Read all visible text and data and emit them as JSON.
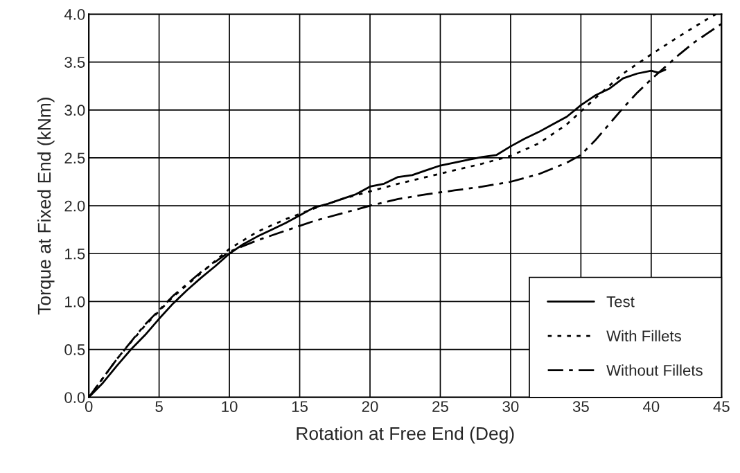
{
  "chart_data": {
    "type": "line",
    "xlabel": "Rotation at Free End (Deg)",
    "ylabel": "Torque at Fixed End (kNm)",
    "xlim": [
      0,
      45
    ],
    "xticks": [
      0,
      5,
      10,
      15,
      20,
      25,
      30,
      35,
      40,
      45
    ],
    "ylim": [
      0,
      4.0
    ],
    "yticks": [
      {
        "value": 0,
        "label": "0.0"
      },
      {
        "value": 0.5,
        "label": "0.5"
      },
      {
        "value": 1.0,
        "label": "1.0"
      },
      {
        "value": 1.5,
        "label": "1.5"
      },
      {
        "value": 2.0,
        "label": "2.0"
      },
      {
        "value": 2.5,
        "label": "2.5"
      },
      {
        "value": 3.0,
        "label": "3.0"
      },
      {
        "value": 3.5,
        "label": "3.5"
      },
      {
        "value": 4.0,
        "label": "4.0"
      }
    ],
    "grid": true,
    "legend": "bottom right",
    "series": [
      {
        "name": "Test",
        "color": "#000000",
        "line_style": "solid",
        "x": [
          0,
          1,
          2,
          3,
          4,
          5,
          6,
          7,
          8,
          9,
          10,
          11,
          12,
          13,
          14,
          15,
          16,
          17,
          18,
          19,
          20,
          21,
          22,
          23,
          24,
          25,
          26,
          27,
          28,
          29,
          30,
          31,
          32,
          33,
          34,
          35,
          36,
          37,
          38,
          39,
          40,
          40.5,
          41
        ],
        "values": [
          0,
          0.15,
          0.33,
          0.5,
          0.65,
          0.82,
          0.98,
          1.12,
          1.25,
          1.37,
          1.5,
          1.6,
          1.68,
          1.75,
          1.82,
          1.9,
          1.98,
          2.02,
          2.07,
          2.12,
          2.2,
          2.23,
          2.3,
          2.32,
          2.37,
          2.42,
          2.45,
          2.48,
          2.51,
          2.53,
          2.62,
          2.7,
          2.77,
          2.85,
          2.93,
          3.05,
          3.15,
          3.22,
          3.33,
          3.38,
          3.41,
          3.39,
          3.42
        ]
      },
      {
        "name": "With Fillets",
        "color": "#000000",
        "line_style": "dotted",
        "x": [
          0,
          2,
          4,
          6,
          8,
          10,
          12,
          14,
          16,
          18,
          20,
          22,
          24,
          26,
          28,
          30,
          32,
          34,
          36,
          38,
          40,
          42,
          44,
          44.6
        ],
        "values": [
          0,
          0.4,
          0.75,
          1.05,
          1.3,
          1.55,
          1.73,
          1.86,
          1.97,
          2.07,
          2.15,
          2.23,
          2.3,
          2.37,
          2.44,
          2.52,
          2.65,
          2.85,
          3.12,
          3.38,
          3.58,
          3.77,
          3.95,
          4.0
        ]
      },
      {
        "name": "Without Fillets",
        "color": "#000000",
        "line_style": "dashed",
        "x": [
          0,
          2,
          4,
          6,
          8,
          10,
          12,
          14,
          16,
          18,
          20,
          22,
          24,
          26,
          28,
          30,
          32,
          34,
          35,
          36,
          37,
          38,
          39,
          40,
          41,
          42,
          43,
          44,
          45
        ],
        "values": [
          0,
          0.4,
          0.76,
          1.06,
          1.31,
          1.52,
          1.64,
          1.74,
          1.84,
          1.92,
          2.0,
          2.07,
          2.12,
          2.16,
          2.2,
          2.25,
          2.33,
          2.45,
          2.53,
          2.68,
          2.85,
          3.02,
          3.18,
          3.32,
          3.45,
          3.58,
          3.7,
          3.8,
          3.9
        ]
      }
    ]
  }
}
